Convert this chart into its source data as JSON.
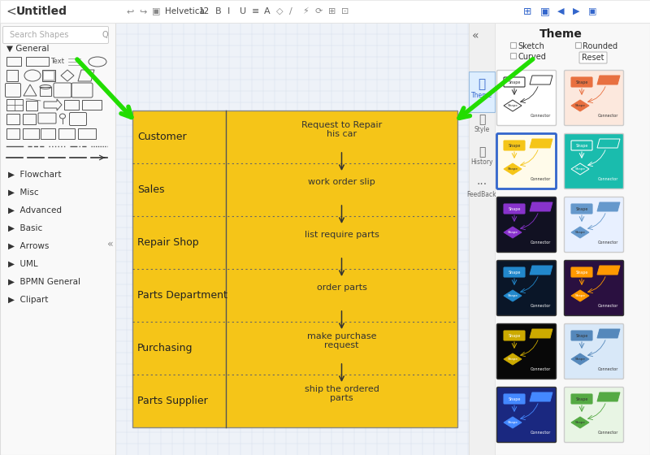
{
  "canvas_bg": "#e8eef5",
  "grid_color": "#c8d4e4",
  "flowchart_bg": "#f5c518",
  "arrow_green": "#22dd00",
  "swimlanes": [
    {
      "label": "Customer",
      "content": "Request to Repair\nhis car"
    },
    {
      "label": "Sales",
      "content": "work order slip"
    },
    {
      "label": "Repair Shop",
      "content": "list require parts"
    },
    {
      "label": "Parts Department",
      "content": "order parts"
    },
    {
      "label": "Purchasing",
      "content": "make purchase\nrequest"
    },
    {
      "label": "Parts Supplier",
      "content": "ship the ordered\nparts"
    }
  ],
  "sidebar_items": [
    "Flowchart",
    "Misc",
    "Advanced",
    "Basic",
    "Arrows",
    "UML",
    "BPMN General",
    "Clipart"
  ],
  "theme_thumbnails": [
    {
      "bg": "#ffffff",
      "shape_fill": "#ffffff",
      "shape_stroke": "#333333",
      "label_color": "#333333"
    },
    {
      "bg": "#fbe9e0",
      "shape_fill": "#e8724a",
      "shape_stroke": "#e8724a",
      "label_color": "#333333"
    },
    {
      "bg": "#fff9e6",
      "shape_fill": "#f5c518",
      "shape_stroke": "#3366cc",
      "label_color": "#333333"
    },
    {
      "bg": "#00bbaa",
      "shape_fill": "#00bbaa",
      "shape_stroke": "#ffffff",
      "label_color": "#ffffff"
    },
    {
      "bg": "#1a1a2e",
      "shape_fill": "#8833cc",
      "shape_stroke": "#ffffff",
      "label_color": "#ffffff"
    },
    {
      "bg": "#f0f4ff",
      "shape_fill": "#f0f4ff",
      "shape_stroke": "#4488cc",
      "label_color": "#4488cc"
    },
    {
      "bg": "#0d1b2a",
      "shape_fill": "#2299cc",
      "shape_stroke": "#ffffff",
      "label_color": "#ffffff"
    },
    {
      "bg": "#2d1b4e",
      "shape_fill": "#ff9900",
      "shape_stroke": "#ffffff",
      "label_color": "#ffffff"
    },
    {
      "bg": "#0a0a14",
      "shape_fill": "#cc9900",
      "shape_stroke": "#cc9900",
      "label_color": "#cc9900"
    },
    {
      "bg": "#ddeeff",
      "shape_fill": "#ddeeff",
      "shape_stroke": "#3366bb",
      "label_color": "#3366bb"
    },
    {
      "bg": "#2233aa",
      "shape_fill": "#4499ff",
      "shape_stroke": "#ffffff",
      "label_color": "#ffffff"
    },
    {
      "bg": "#e8f5e8",
      "shape_fill": "#55aa44",
      "shape_stroke": "#55aa44",
      "label_color": "#333333"
    }
  ]
}
